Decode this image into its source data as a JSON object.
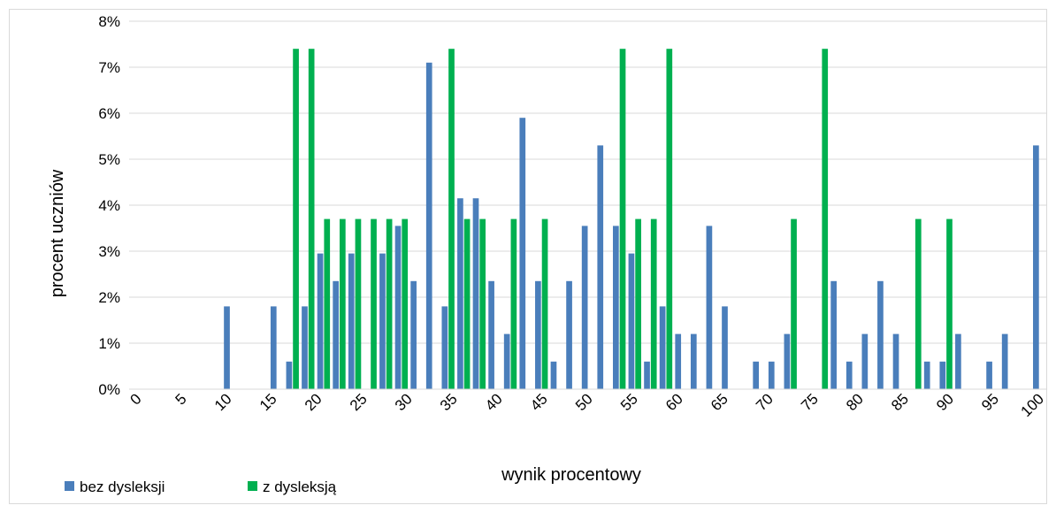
{
  "chart_data": {
    "type": "bar",
    "xlabel": "wynik procentowy",
    "ylabel": "procent uczniów",
    "ylim": [
      0,
      8
    ],
    "y_ticks": [
      "0%",
      "1%",
      "2%",
      "3%",
      "4%",
      "5%",
      "6%",
      "7%",
      "8%"
    ],
    "x_ticks": [
      "0",
      "5",
      "10",
      "15",
      "20",
      "25",
      "30",
      "35",
      "40",
      "45",
      "50",
      "55",
      "60",
      "65",
      "70",
      "75",
      "80",
      "85",
      "90",
      "95",
      "100"
    ],
    "x_step_count": 59,
    "grid": "horizontal",
    "legend_position": "bottom-left",
    "series": [
      {
        "name": "bez dysleksji",
        "color": "#4a7ebb",
        "values": [
          0,
          0,
          0,
          0,
          0,
          0,
          1.8,
          0,
          0,
          1.8,
          0.6,
          1.8,
          2.95,
          2.35,
          2.95,
          0,
          2.95,
          3.55,
          2.35,
          7.1,
          1.8,
          4.15,
          4.15,
          2.35,
          1.2,
          5.9,
          2.35,
          0.6,
          2.35,
          3.55,
          5.3,
          3.55,
          2.95,
          0.6,
          1.8,
          1.2,
          1.2,
          3.55,
          1.8,
          0,
          0.6,
          0.6,
          1.2,
          0,
          0,
          2.35,
          0.6,
          1.2,
          2.35,
          1.2,
          0,
          0.6,
          0.6,
          1.2,
          0,
          0.6,
          1.2,
          0,
          5.3
        ]
      },
      {
        "name": "z dysleksją",
        "color": "#00b050",
        "values": [
          0,
          0,
          0,
          0,
          0,
          0,
          0,
          0,
          0,
          0,
          7.4,
          7.4,
          3.7,
          3.7,
          3.7,
          3.7,
          3.7,
          3.7,
          0,
          0,
          7.4,
          3.7,
          3.7,
          0,
          3.7,
          0,
          3.7,
          0,
          0,
          0,
          0,
          7.4,
          3.7,
          3.7,
          7.4,
          0,
          0,
          0,
          0,
          0,
          0,
          0,
          3.7,
          0,
          7.4,
          0,
          0,
          0,
          0,
          0,
          3.7,
          0,
          3.7,
          0,
          0,
          0,
          0,
          0,
          0
        ]
      }
    ]
  }
}
